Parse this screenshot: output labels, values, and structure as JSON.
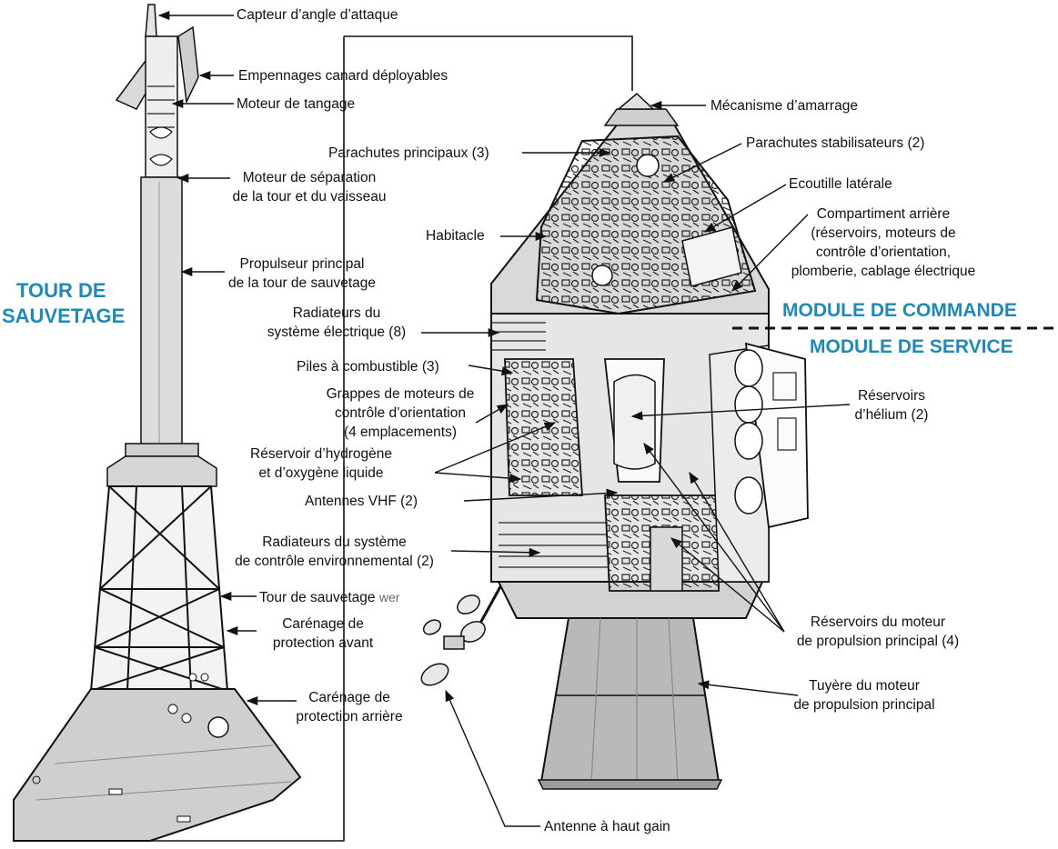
{
  "headings": {
    "tower_line1": "TOUR  DE",
    "tower_line2": "SAUVETAGE",
    "command_module": "MODULE DE COMMANDE",
    "service_module": "MODULE DE SERVICE"
  },
  "labels": {
    "capteur": "Capteur d’angle d’attaque",
    "empennages": "Empennages canard déployables",
    "moteur_tangage": "Moteur de tangage",
    "moteur_separation_1": "Moteur de séparation",
    "moteur_separation_2": "de la tour et du vaisseau",
    "propulseur_1": "Propulseur principal",
    "propulseur_2": "de la tour de sauvetage",
    "radiateurs_elec_1": "Radiateurs du",
    "radiateurs_elec_2": "système électrique (8)",
    "piles": "Piles à combustible (3)",
    "grappes_1": "Grappes de moteurs de",
    "grappes_2": "contrôle d’orientation",
    "grappes_3": "(4 emplacements)",
    "reservoir_h_1": "Réservoir d’hydrogène",
    "reservoir_h_2": "et d’oxygène liquide",
    "antennes_vhf": "Antennes VHF (2)",
    "radiateurs_env_1": "Radiateurs du système",
    "radiateurs_env_2": "de contrôle environnemental (2)",
    "tour_sauvetage": "Tour de sauvetage",
    "tour_suffix": "wer",
    "carenage_avant_1": "Carénage de",
    "carenage_avant_2": "protection avant",
    "carenage_arriere_1": "Carénage de",
    "carenage_arriere_2": "protection arrière",
    "mecanisme": "Mécanisme d’amarrage",
    "parachutes_principaux": "Parachutes principaux (3)",
    "parachutes_stab": "Parachutes stabilisateurs (2)",
    "habitacle": "Habitacle",
    "ecoutille": "Ecoutille latérale",
    "compartiment_1": "Compartiment arrière",
    "compartiment_2": "(réservoirs, moteurs de",
    "compartiment_3": "contrôle d’orientation,",
    "compartiment_4": "plomberie, cablage électrique",
    "helium_1": "Réservoirs",
    "helium_2": "d’hélium (2)",
    "reservoirs_moteur_1": "Réservoirs du moteur",
    "reservoirs_moteur_2": "de propulsion principal (4)",
    "tuyere_1": "Tuyère du moteur",
    "tuyere_2": "de propulsion principal",
    "antenne_gain": "Antenne à haut gain"
  }
}
